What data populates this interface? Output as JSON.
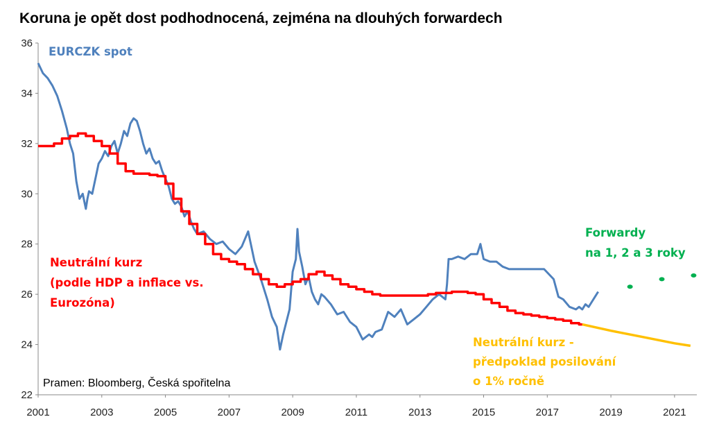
{
  "chart_data": {
    "type": "line",
    "title": "Koruna je opět dost podhodnocená, zejména na dlouhých forwardech",
    "ylim": [
      22,
      36
    ],
    "yticks": [
      "22",
      "24",
      "26",
      "28",
      "30",
      "32",
      "34",
      "36"
    ],
    "xlim": [
      2001,
      2021.7
    ],
    "xticks": [
      "2001",
      "2003",
      "2005",
      "2007",
      "2009",
      "2011",
      "2013",
      "2015",
      "2017",
      "2019",
      "2021"
    ],
    "grid": false,
    "series": [
      {
        "name": "EURCZK spot",
        "color": "#4f81bd",
        "x": [
          2001.0,
          2001.15,
          2001.3,
          2001.45,
          2001.6,
          2001.75,
          2001.9,
          2002.0,
          2002.1,
          2002.2,
          2002.3,
          2002.4,
          2002.5,
          2002.55,
          2002.6,
          2002.7,
          2002.8,
          2002.9,
          2003.0,
          2003.1,
          2003.2,
          2003.3,
          2003.4,
          2003.5,
          2003.6,
          2003.7,
          2003.8,
          2003.9,
          2004.0,
          2004.1,
          2004.2,
          2004.3,
          2004.4,
          2004.5,
          2004.6,
          2004.7,
          2004.8,
          2004.9,
          2005.0,
          2005.1,
          2005.2,
          2005.3,
          2005.4,
          2005.5,
          2005.6,
          2005.7,
          2005.8,
          2005.9,
          2006.0,
          2006.2,
          2006.4,
          2006.6,
          2006.8,
          2007.0,
          2007.2,
          2007.4,
          2007.6,
          2007.8,
          2008.0,
          2008.2,
          2008.35,
          2008.5,
          2008.6,
          2008.7,
          2008.8,
          2008.9,
          2009.0,
          2009.1,
          2009.15,
          2009.2,
          2009.3,
          2009.4,
          2009.5,
          2009.6,
          2009.7,
          2009.8,
          2009.9,
          2010.0,
          2010.2,
          2010.4,
          2010.6,
          2010.8,
          2011.0,
          2011.2,
          2011.4,
          2011.5,
          2011.6,
          2011.8,
          2012.0,
          2012.2,
          2012.4,
          2012.6,
          2012.8,
          2013.0,
          2013.2,
          2013.4,
          2013.6,
          2013.8,
          2013.85,
          2013.9,
          2014.0,
          2014.2,
          2014.4,
          2014.6,
          2014.8,
          2014.9,
          2015.0,
          2015.2,
          2015.4,
          2015.6,
          2015.8,
          2016.0,
          2016.3,
          2016.6,
          2016.9,
          2017.2,
          2017.35,
          2017.5,
          2017.7,
          2017.9,
          2018.0,
          2018.1,
          2018.2,
          2018.3,
          2018.4,
          2018.5,
          2018.6
        ],
        "values": [
          35.2,
          34.8,
          34.6,
          34.3,
          33.9,
          33.3,
          32.6,
          32.0,
          31.6,
          30.5,
          29.8,
          30.0,
          29.4,
          29.8,
          30.1,
          30.0,
          30.6,
          31.2,
          31.4,
          31.7,
          31.5,
          31.9,
          32.1,
          31.6,
          32.0,
          32.5,
          32.3,
          32.8,
          33.0,
          32.9,
          32.5,
          32.0,
          31.6,
          31.8,
          31.4,
          31.2,
          31.3,
          30.9,
          30.6,
          30.3,
          29.8,
          29.6,
          29.7,
          29.5,
          29.1,
          29.3,
          28.9,
          28.6,
          28.4,
          28.5,
          28.2,
          28.0,
          28.1,
          27.8,
          27.6,
          27.9,
          28.5,
          27.3,
          26.6,
          25.8,
          25.1,
          24.7,
          23.8,
          24.4,
          24.9,
          25.4,
          26.9,
          27.4,
          28.6,
          27.7,
          27.1,
          26.4,
          26.7,
          26.1,
          25.8,
          25.6,
          26.0,
          25.9,
          25.6,
          25.2,
          25.3,
          24.9,
          24.7,
          24.2,
          24.4,
          24.3,
          24.5,
          24.6,
          25.3,
          25.1,
          25.4,
          24.8,
          25.0,
          25.2,
          25.5,
          25.8,
          26.0,
          25.8,
          26.4,
          27.4,
          27.4,
          27.5,
          27.4,
          27.6,
          27.6,
          28.0,
          27.4,
          27.3,
          27.3,
          27.1,
          27.0,
          27.0,
          27.0,
          27.0,
          27.0,
          26.6,
          25.9,
          25.8,
          25.5,
          25.4,
          25.5,
          25.4,
          25.6,
          25.5,
          25.7,
          25.9,
          26.1
        ]
      },
      {
        "name": "Neutrální kurz (podle HDP a inflace vs. Eurozóna)",
        "color": "#ff0000",
        "x": [
          2001.0,
          2001.25,
          2001.5,
          2001.75,
          2002.0,
          2002.25,
          2002.5,
          2002.75,
          2003.0,
          2003.25,
          2003.5,
          2003.75,
          2004.0,
          2004.25,
          2004.5,
          2004.75,
          2005.0,
          2005.25,
          2005.5,
          2005.75,
          2006.0,
          2006.25,
          2006.5,
          2006.75,
          2007.0,
          2007.25,
          2007.5,
          2007.75,
          2008.0,
          2008.25,
          2008.5,
          2008.75,
          2009.0,
          2009.25,
          2009.5,
          2009.75,
          2010.0,
          2010.25,
          2010.5,
          2010.75,
          2011.0,
          2011.25,
          2011.5,
          2011.75,
          2012.0,
          2012.25,
          2012.5,
          2012.75,
          2013.0,
          2013.25,
          2013.5,
          2013.75,
          2014.0,
          2014.25,
          2014.5,
          2014.75,
          2015.0,
          2015.25,
          2015.5,
          2015.75,
          2016.0,
          2016.25,
          2016.5,
          2016.75,
          2017.0,
          2017.25,
          2017.5,
          2017.75,
          2018.0,
          2018.1
        ],
        "values": [
          31.9,
          31.9,
          32.0,
          32.2,
          32.3,
          32.4,
          32.3,
          32.1,
          31.9,
          31.6,
          31.2,
          30.9,
          30.8,
          30.8,
          30.75,
          30.7,
          30.4,
          29.8,
          29.3,
          28.8,
          28.4,
          28.0,
          27.6,
          27.4,
          27.3,
          27.2,
          27.0,
          26.8,
          26.6,
          26.4,
          26.3,
          26.4,
          26.5,
          26.6,
          26.8,
          26.9,
          26.75,
          26.6,
          26.4,
          26.3,
          26.2,
          26.1,
          26.0,
          25.95,
          25.95,
          25.95,
          25.95,
          25.95,
          25.95,
          26.0,
          26.05,
          26.05,
          26.1,
          26.1,
          26.05,
          26.0,
          25.8,
          25.65,
          25.5,
          25.35,
          25.25,
          25.2,
          25.15,
          25.1,
          25.05,
          25.0,
          24.95,
          24.85,
          24.8,
          24.8
        ]
      },
      {
        "name": "Neutrální kurz - předpoklad posilování o 1% ročně",
        "color": "#ffc000",
        "x": [
          2018.1,
          2019.0,
          2020.0,
          2021.0,
          2021.5
        ],
        "values": [
          24.8,
          24.55,
          24.3,
          24.05,
          23.95
        ]
      },
      {
        "name": "Forwardy na 1, 2 a 3 roky",
        "color": "#00b050",
        "type": "scatter",
        "x": [
          2019.6,
          2020.6,
          2021.6
        ],
        "values": [
          26.3,
          26.6,
          26.75
        ]
      }
    ],
    "annotations": {
      "spot_label": "EURCZK spot",
      "neutral_line1": "Neutrální kurz",
      "neutral_line2": "(podle HDP a inflace vs.",
      "neutral_line3": "Eurozóna)",
      "forward_line1": "Forwardy",
      "forward_line2": "na 1, 2 a 3 roky",
      "proj_line1": "Neutrální kurz -",
      "proj_line2": "předpoklad posilování",
      "proj_line3": "o 1% ročně"
    },
    "source": "Pramen: Bloomberg, Česká spořitelna"
  }
}
